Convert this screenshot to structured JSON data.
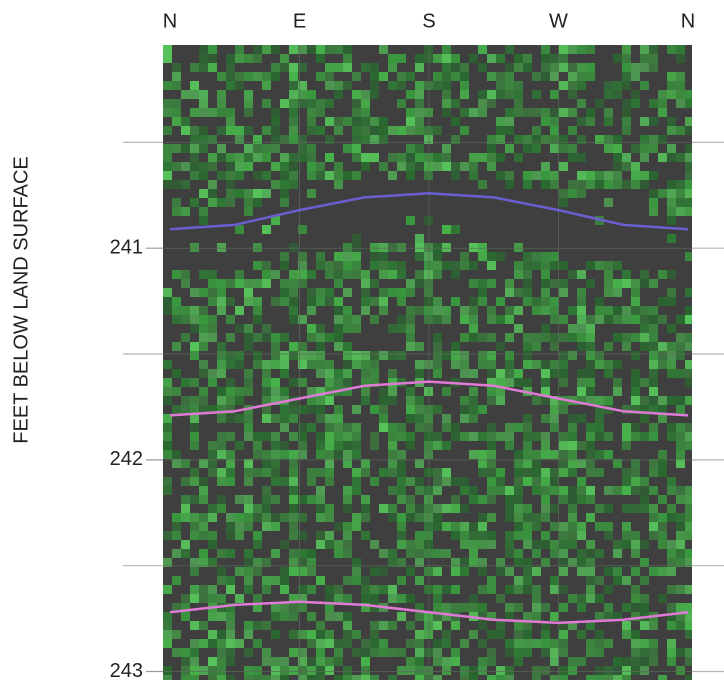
{
  "chart_data": {
    "type": "line",
    "y_label": "FEET BELOW LAND SURFACE",
    "xlim": [
      0,
      360
    ],
    "xticks": [
      {
        "value": 0,
        "label": "N"
      },
      {
        "value": 90,
        "label": "E"
      },
      {
        "value": 180,
        "label": "S"
      },
      {
        "value": 270,
        "label": "W"
      },
      {
        "value": 360,
        "label": "N"
      }
    ],
    "ylim": [
      240.04,
      243.04
    ],
    "y_inverted": true,
    "yticks": [
      241,
      242,
      243
    ],
    "minor_yticks": [
      240.5,
      241.5,
      242.5
    ],
    "x": [
      0,
      45,
      90,
      135,
      180,
      225,
      270,
      315,
      360
    ],
    "series": [
      {
        "color": "#6a5fd0",
        "values": [
          240.91,
          240.89,
          240.82,
          240.76,
          240.74,
          240.76,
          240.82,
          240.89,
          240.91
        ]
      },
      {
        "color": "#e07ad6",
        "values": [
          241.79,
          241.77,
          241.71,
          241.65,
          241.63,
          241.65,
          241.71,
          241.77,
          241.79
        ]
      },
      {
        "color": "#e07ad6",
        "values": [
          242.72,
          242.685,
          242.67,
          242.685,
          242.72,
          242.755,
          242.77,
          242.755,
          242.72
        ]
      }
    ]
  }
}
